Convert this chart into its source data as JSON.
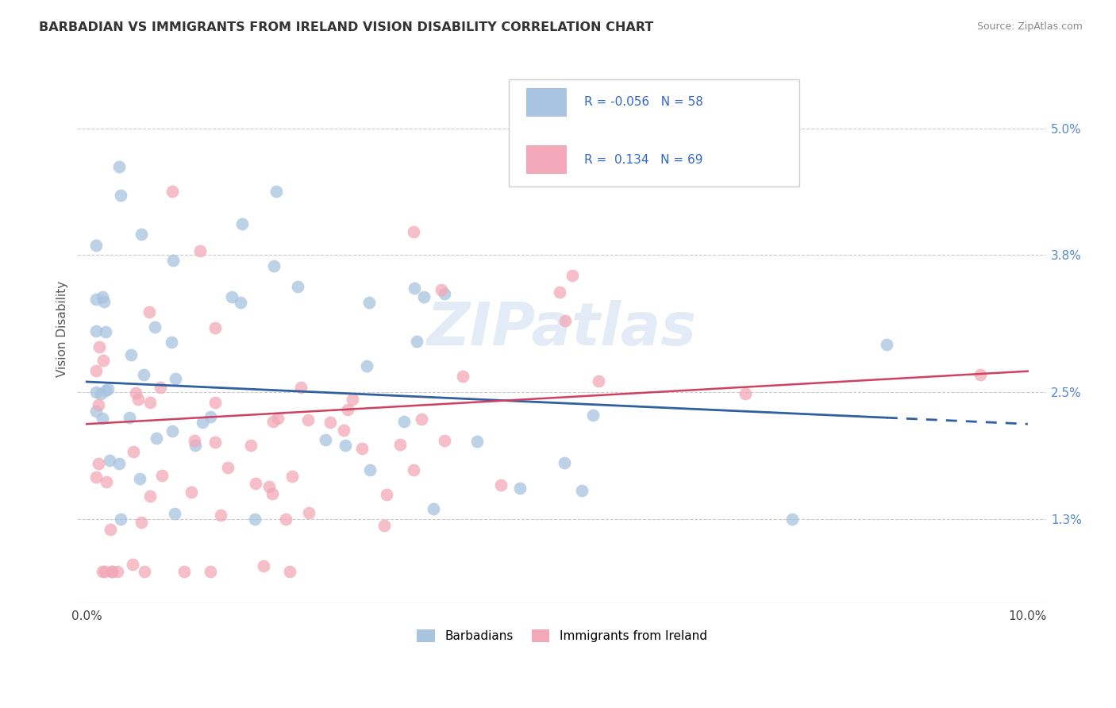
{
  "title": "BARBADIAN VS IMMIGRANTS FROM IRELAND VISION DISABILITY CORRELATION CHART",
  "source": "Source: ZipAtlas.com",
  "ylabel": "Vision Disability",
  "watermark": "ZIPatlas",
  "xlim": [
    -0.001,
    0.102
  ],
  "ylim": [
    0.005,
    0.057
  ],
  "xtick_positions": [
    0.0,
    0.02,
    0.04,
    0.06,
    0.08,
    0.1
  ],
  "xtick_labels": [
    "0.0%",
    "",
    "",
    "",
    "",
    "10.0%"
  ],
  "ytick_positions": [
    0.013,
    0.025,
    0.038,
    0.05
  ],
  "ytick_labels": [
    "1.3%",
    "2.5%",
    "3.8%",
    "5.0%"
  ],
  "barbadian_R": "-0.056",
  "barbadian_N": "58",
  "ireland_R": "0.134",
  "ireland_N": "69",
  "color_barbadian": "#a8c4e0",
  "color_ireland": "#f2a8b8",
  "color_line_barbadian": "#3060a0",
  "color_line_ireland": "#d04060",
  "legend_label_barbadian": "Barbadians",
  "legend_label_ireland": "Immigrants from Ireland",
  "barb_line_x0": 0.0,
  "barb_line_y0": 0.026,
  "barb_line_x1": 0.1,
  "barb_line_y1": 0.022,
  "barb_line_solid_end": 0.085,
  "ire_line_x0": 0.0,
  "ire_line_y0": 0.022,
  "ire_line_x1": 0.1,
  "ire_line_y1": 0.027
}
